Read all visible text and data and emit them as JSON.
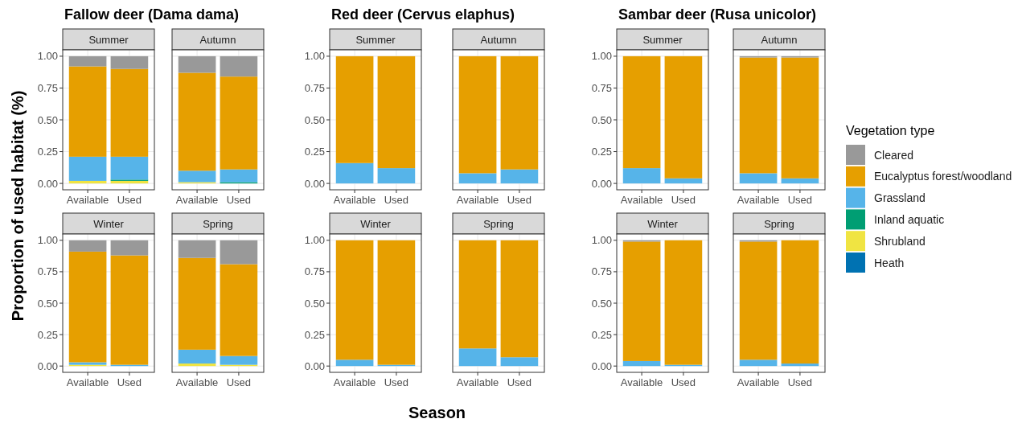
{
  "chart_data": [
    {
      "type": "bar",
      "title": "Fallow deer (Dama dama)",
      "subtitle": "Summer",
      "ylabel": "Proportion of used habitat (%)",
      "categories": [
        "Available",
        "Used"
      ],
      "stacked": true,
      "series": [
        {
          "color": "#f0e442",
          "values": [
            0.02,
            0.02
          ]
        },
        {
          "color": "#009e73",
          "values": [
            0,
            0.01
          ]
        },
        {
          "color": "#56b4e9",
          "values": [
            0.19,
            0.18
          ]
        },
        {
          "color": "#e69f00",
          "values": [
            0.71,
            0.69
          ]
        },
        {
          "color": "#999999",
          "values": [
            0.08,
            0.1
          ]
        }
      ],
      "ylim": [
        -0.05,
        1.05
      ],
      "yticks": [
        {
          "value": 0,
          "label": "0.00"
        },
        {
          "value": 0.25,
          "label": "0.25"
        },
        {
          "value": 0.5,
          "label": "0.50"
        },
        {
          "value": 0.75,
          "label": "0.75"
        },
        {
          "value": 1,
          "label": "1.00"
        }
      ],
      "grid": true
    },
    {
      "type": "bar",
      "subtitle": "Autumn",
      "categories": [
        "Available",
        "Used"
      ],
      "stacked": true,
      "series": [
        {
          "color": "#f0e442",
          "values": [
            0.01,
            0
          ]
        },
        {
          "color": "#009e73",
          "values": [
            0,
            0.01
          ]
        },
        {
          "color": "#56b4e9",
          "values": [
            0.09,
            0.1
          ]
        },
        {
          "color": "#e69f00",
          "values": [
            0.77,
            0.73
          ]
        },
        {
          "color": "#999999",
          "values": [
            0.13,
            0.16
          ]
        }
      ],
      "ylim": [
        -0.05,
        1.05
      ],
      "yticks": [
        0,
        0.25,
        0.5,
        0.75,
        1
      ],
      "grid": true,
      "tick_labels": "x"
    },
    {
      "type": "bar",
      "subtitle": "Winter",
      "categories": [
        "Available",
        "Used"
      ],
      "stacked": true,
      "series": [
        {
          "color": "#f0e442",
          "values": [
            0.01,
            0
          ]
        },
        {
          "color": "#56b4e9",
          "values": [
            0.02,
            0.01
          ]
        },
        {
          "color": "#e69f00",
          "values": [
            0.88,
            0.87
          ]
        },
        {
          "color": "#999999",
          "values": [
            0.09,
            0.12
          ]
        }
      ],
      "ylim": [
        -0.05,
        1.05
      ],
      "yticks": [
        {
          "value": 0,
          "label": "0.00"
        },
        {
          "value": 0.25,
          "label": "0.25"
        },
        {
          "value": 0.5,
          "label": "0.50"
        },
        {
          "value": 0.75,
          "label": "0.75"
        },
        {
          "value": 1,
          "label": "1.00"
        }
      ],
      "grid": true
    },
    {
      "type": "bar",
      "subtitle": "Spring",
      "categories": [
        "Available",
        "Used"
      ],
      "stacked": true,
      "series": [
        {
          "color": "#f0e442",
          "values": [
            0.02,
            0.01
          ]
        },
        {
          "color": "#56b4e9",
          "values": [
            0.11,
            0.07
          ]
        },
        {
          "color": "#e69f00",
          "values": [
            0.73,
            0.73
          ]
        },
        {
          "color": "#999999",
          "values": [
            0.14,
            0.19
          ]
        }
      ],
      "ylim": [
        -0.05,
        1.05
      ],
      "yticks": [
        0,
        0.25,
        0.5,
        0.75,
        1
      ],
      "grid": true,
      "tick_labels": "x"
    },
    {
      "type": "bar",
      "title": "Red deer (Cervus elaphus)",
      "subtitle": "Summer",
      "categories": [
        "Available",
        "Used"
      ],
      "stacked": true,
      "series": [
        {
          "color": "#56b4e9",
          "values": [
            0.16,
            0.12
          ]
        },
        {
          "color": "#e69f00",
          "values": [
            0.84,
            0.88
          ]
        }
      ],
      "ylim": [
        -0.05,
        1.05
      ],
      "yticks": [
        {
          "value": 0,
          "label": "0.00"
        },
        {
          "value": 0.25,
          "label": "0.25"
        },
        {
          "value": 0.5,
          "label": "0.50"
        },
        {
          "value": 0.75,
          "label": "0.75"
        },
        {
          "value": 1,
          "label": "1.00"
        }
      ],
      "grid": true
    },
    {
      "type": "bar",
      "subtitle": "Autumn",
      "categories": [
        "Available",
        "Used"
      ],
      "stacked": true,
      "series": [
        {
          "color": "#56b4e9",
          "values": [
            0.08,
            0.11
          ]
        },
        {
          "color": "#e69f00",
          "values": [
            0.92,
            0.89
          ]
        }
      ],
      "ylim": [
        -0.05,
        1.05
      ],
      "yticks": [
        0,
        0.25,
        0.5,
        0.75,
        1
      ],
      "grid": true,
      "tick_labels": "x"
    },
    {
      "type": "bar",
      "subtitle": "Winter",
      "xlabel": "Season",
      "categories": [
        "Available",
        "Used"
      ],
      "stacked": true,
      "series": [
        {
          "color": "#56b4e9",
          "values": [
            0.05,
            0.01
          ]
        },
        {
          "color": "#e69f00",
          "values": [
            0.95,
            0.99
          ]
        }
      ],
      "ylim": [
        -0.05,
        1.05
      ],
      "yticks": [
        {
          "value": 0,
          "label": "0.00"
        },
        {
          "value": 0.25,
          "label": "0.25"
        },
        {
          "value": 0.5,
          "label": "0.50"
        },
        {
          "value": 0.75,
          "label": "0.75"
        },
        {
          "value": 1,
          "label": "1.00"
        }
      ],
      "grid": true
    },
    {
      "type": "bar",
      "subtitle": "Spring",
      "categories": [
        "Available",
        "Used"
      ],
      "stacked": true,
      "series": [
        {
          "color": "#56b4e9",
          "values": [
            0.14,
            0.07
          ]
        },
        {
          "color": "#e69f00",
          "values": [
            0.86,
            0.93
          ]
        }
      ],
      "ylim": [
        -0.05,
        1.05
      ],
      "yticks": [
        0,
        0.25,
        0.5,
        0.75,
        1
      ],
      "grid": true,
      "tick_labels": "x"
    },
    {
      "type": "bar",
      "title": "Sambar deer (Rusa unicolor)",
      "subtitle": "Summer",
      "categories": [
        "Available",
        "Used"
      ],
      "stacked": true,
      "series": [
        {
          "color": "#56b4e9",
          "values": [
            0.12,
            0.04
          ]
        },
        {
          "color": "#e69f00",
          "values": [
            0.88,
            0.96
          ]
        }
      ],
      "ylim": [
        -0.05,
        1.05
      ],
      "yticks": [
        {
          "value": 0,
          "label": "0.00"
        },
        {
          "value": 0.25,
          "label": "0.25"
        },
        {
          "value": 0.5,
          "label": "0.50"
        },
        {
          "value": 0.75,
          "label": "0.75"
        },
        {
          "value": 1,
          "label": "1.00"
        }
      ],
      "grid": true
    },
    {
      "type": "bar",
      "subtitle": "Autumn",
      "categories": [
        "Available",
        "Used"
      ],
      "stacked": true,
      "series": [
        {
          "color": "#56b4e9",
          "values": [
            0.08,
            0.04
          ]
        },
        {
          "color": "#e69f00",
          "values": [
            0.91,
            0.95
          ]
        },
        {
          "color": "#999999",
          "values": [
            0.01,
            0.01
          ]
        }
      ],
      "ylim": [
        -0.05,
        1.05
      ],
      "yticks": [
        0,
        0.25,
        0.5,
        0.75,
        1
      ],
      "grid": true,
      "tick_labels": "x"
    },
    {
      "type": "bar",
      "subtitle": "Winter",
      "categories": [
        "Available",
        "Used"
      ],
      "stacked": true,
      "series": [
        {
          "color": "#56b4e9",
          "values": [
            0.04,
            0.01
          ]
        },
        {
          "color": "#e69f00",
          "values": [
            0.95,
            0.99
          ]
        },
        {
          "color": "#999999",
          "values": [
            0.01,
            0
          ]
        }
      ],
      "ylim": [
        -0.05,
        1.05
      ],
      "yticks": [
        {
          "value": 0,
          "label": "0.00"
        },
        {
          "value": 0.25,
          "label": "0.25"
        },
        {
          "value": 0.5,
          "label": "0.50"
        },
        {
          "value": 0.75,
          "label": "0.75"
        },
        {
          "value": 1,
          "label": "1.00"
        }
      ],
      "grid": true
    },
    {
      "type": "bar",
      "subtitle": "Spring",
      "legend": "right",
      "legend_title": "Vegetation type",
      "categories": [
        "Available",
        "Used"
      ],
      "stacked": true,
      "series": [
        {
          "name": "Heath",
          "color": "#0072b2",
          "values": [
            0,
            0
          ]
        },
        {
          "name": "Shrubland",
          "color": "#f0e442",
          "values": [
            0,
            0
          ]
        },
        {
          "name": "Inland aquatic",
          "color": "#009e73",
          "values": [
            0,
            0
          ]
        },
        {
          "name": "Grassland",
          "color": "#56b4e9",
          "values": [
            0.05,
            0.02
          ]
        },
        {
          "name": "Eucalyptus forest/woodland",
          "color": "#e69f00",
          "values": [
            0.94,
            0.98
          ]
        },
        {
          "name": "Cleared",
          "color": "#999999",
          "values": [
            0.01,
            0
          ]
        }
      ],
      "ylim": [
        -0.05,
        1.05
      ],
      "yticks": [
        0,
        0.25,
        0.5,
        0.75,
        1
      ],
      "grid": true,
      "tick_labels": "x"
    }
  ]
}
